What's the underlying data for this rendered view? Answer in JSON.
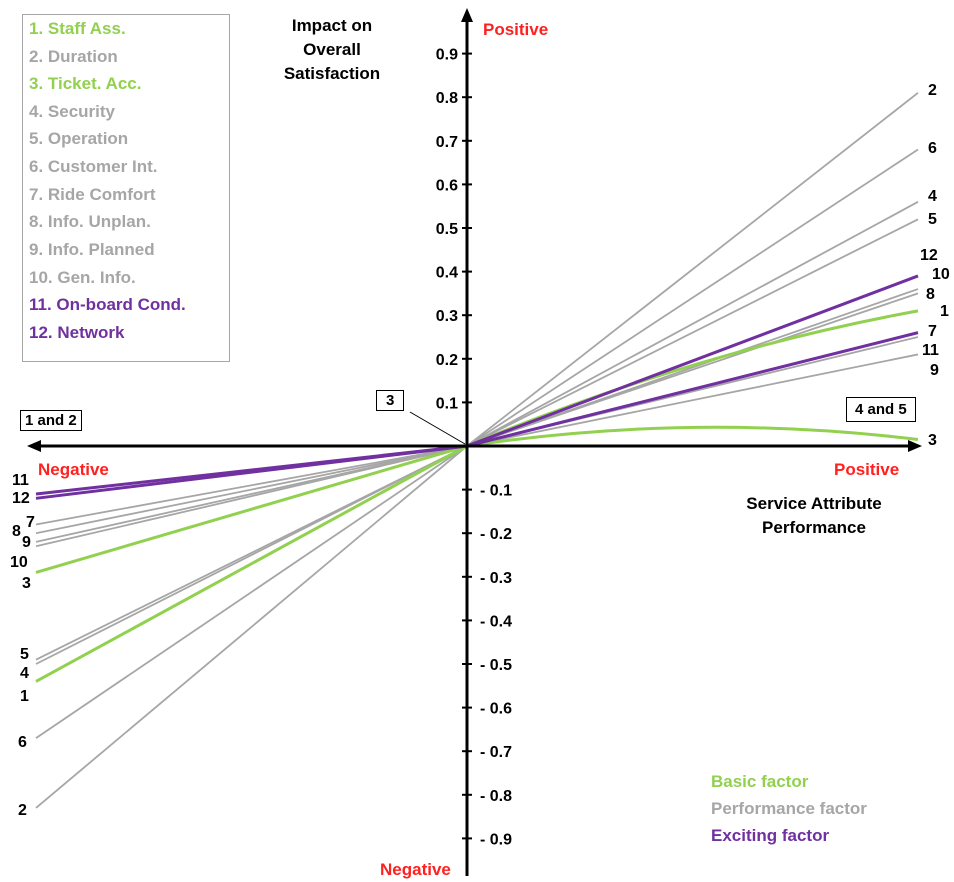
{
  "chart_data": {
    "type": "line",
    "title": "",
    "ylabel": "Impact on Overall Satisfaction",
    "xlabel": "Service Attribute Performance",
    "y_positive_label": "Positive",
    "y_negative_label": "Negative",
    "x_positive_label": "Positive",
    "x_negative_label": "Negative",
    "ylim": [
      -0.9,
      0.9
    ],
    "y_ticks": [
      0.9,
      0.8,
      0.7,
      0.6,
      0.5,
      0.4,
      0.3,
      0.2,
      0.1,
      -0.1,
      -0.2,
      -0.3,
      -0.4,
      -0.5,
      -0.6,
      -0.7,
      -0.8,
      -0.9
    ],
    "y_tick_labels": [
      "0.9",
      "0.8",
      "0.7",
      "0.6",
      "0.5",
      "0.4",
      "0.3",
      "0.2",
      "0.1",
      "- 0.1",
      "- 0.2",
      "- 0.3",
      "- 0.4",
      "- 0.5",
      "- 0.6",
      "- 0.7",
      "- 0.8",
      "- 0.9"
    ],
    "legend": [
      {
        "label": "1. Staff Ass.",
        "color": "#92d050"
      },
      {
        "label": "2. Duration",
        "color": "#a6a6a6"
      },
      {
        "label": "3. Ticket. Acc.",
        "color": "#92d050"
      },
      {
        "label": "4. Security",
        "color": "#a6a6a6"
      },
      {
        "label": "5. Operation",
        "color": "#a6a6a6"
      },
      {
        "label": "6. Customer Int.",
        "color": "#a6a6a6"
      },
      {
        "label": "7. Ride Comfort",
        "color": "#a6a6a6"
      },
      {
        "label": "8. Info. Unplan.",
        "color": "#a6a6a6"
      },
      {
        "label": "9. Info. Planned",
        "color": "#a6a6a6"
      },
      {
        "label": "10. Gen. Info.",
        "color": "#a6a6a6"
      },
      {
        "label": "11. On-board Cond.",
        "color": "#7030a0"
      },
      {
        "label": "12. Network",
        "color": "#7030a0"
      }
    ],
    "factor_legend": [
      {
        "label": "Basic factor",
        "color": "#92d050"
      },
      {
        "label": "Performance factor",
        "color": "#a6a6a6"
      },
      {
        "label": "Exciting factor",
        "color": "#7030a0"
      }
    ],
    "series": [
      {
        "name": "1",
        "factor": "basic",
        "y_positive": 0.31,
        "y_negative": -0.54,
        "curve": 0.03
      },
      {
        "name": "2",
        "factor": "performance",
        "y_positive": 0.81,
        "y_negative": -0.83
      },
      {
        "name": "3",
        "factor": "basic",
        "y_positive": 0.015,
        "y_negative": -0.29,
        "curve": 0.035
      },
      {
        "name": "4",
        "factor": "performance",
        "y_positive": 0.56,
        "y_negative": -0.5
      },
      {
        "name": "5",
        "factor": "performance",
        "y_positive": 0.52,
        "y_negative": -0.49
      },
      {
        "name": "6",
        "factor": "performance",
        "y_positive": 0.68,
        "y_negative": -0.67
      },
      {
        "name": "7",
        "factor": "performance",
        "y_positive": 0.25,
        "y_negative": -0.18
      },
      {
        "name": "8",
        "factor": "performance",
        "y_positive": 0.35,
        "y_negative": -0.2
      },
      {
        "name": "9",
        "factor": "performance",
        "y_positive": 0.21,
        "y_negative": -0.22
      },
      {
        "name": "10",
        "factor": "performance",
        "y_positive": 0.36,
        "y_negative": -0.23
      },
      {
        "name": "11",
        "factor": "exciting",
        "y_positive": 0.26,
        "y_negative": -0.11
      },
      {
        "name": "12",
        "factor": "exciting",
        "y_positive": 0.39,
        "y_negative": -0.12
      }
    ],
    "right_end_labels": [
      "2",
      "6",
      "4",
      "5",
      "12",
      "10",
      "8",
      "1",
      "7",
      "11",
      "9",
      "3"
    ],
    "left_end_labels": [
      "11",
      "12",
      "7",
      "8",
      "9",
      "10",
      "3",
      "5",
      "4",
      "1",
      "6",
      "2"
    ],
    "annotations": [
      "1 and 2",
      "3",
      "4 and 5"
    ]
  }
}
